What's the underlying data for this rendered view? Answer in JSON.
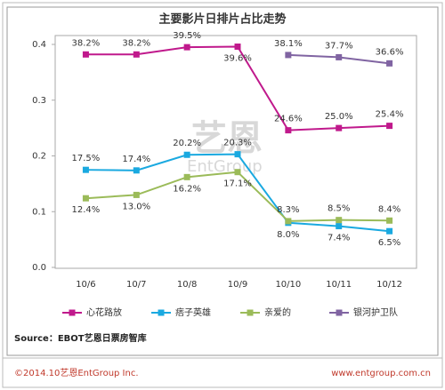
{
  "chart_data": {
    "type": "line",
    "title": "主要影片日排片占比走势",
    "categories": [
      "10/6",
      "10/7",
      "10/8",
      "10/9",
      "10/10",
      "10/11",
      "10/12"
    ],
    "ylim": [
      0,
      0.4
    ],
    "yticks": [
      {
        "value": 0,
        "label": "0.0"
      },
      0.1,
      0.2,
      0.3,
      0.4
    ],
    "series": [
      {
        "name": "心花路放",
        "color": "#c0198c",
        "values": [
          0.382,
          0.382,
          0.395,
          0.396,
          0.246,
          0.25,
          0.254
        ],
        "value_labels": [
          "38.2%",
          "38.2%",
          "39.5%",
          "39.6%",
          "24.6%",
          "25.0%",
          "25.4%"
        ]
      },
      {
        "name": "痞子英雄",
        "color": "#1aa9e0",
        "values": [
          0.175,
          0.174,
          0.202,
          0.203,
          0.08,
          0.074,
          0.065
        ],
        "value_labels": [
          "17.5%",
          "17.4%",
          "20.2%",
          "20.3%",
          "8.0%",
          "7.4%",
          "6.5%"
        ]
      },
      {
        "name": "亲爱的",
        "color": "#9bbb59",
        "values": [
          0.124,
          0.13,
          0.162,
          0.171,
          0.083,
          0.085,
          0.084
        ],
        "value_labels": [
          "12.4%",
          "13.0%",
          "16.2%",
          "17.1%",
          "8.3%",
          "8.5%",
          "8.4%"
        ]
      },
      {
        "name": "银河护卫队",
        "color": "#8064a2",
        "values": [
          null,
          null,
          null,
          null,
          0.381,
          0.377,
          0.366
        ],
        "value_labels": [
          null,
          null,
          null,
          null,
          "38.1%",
          "37.7%",
          "36.6%"
        ]
      }
    ]
  },
  "source": "Source：EBOT艺恩日票房智库",
  "footer": {
    "left": "©2014.10艺恩EntGroup Inc.",
    "right": "www.entgroup.com.cn"
  },
  "watermark": [
    "艺恩",
    "EntGroup"
  ]
}
